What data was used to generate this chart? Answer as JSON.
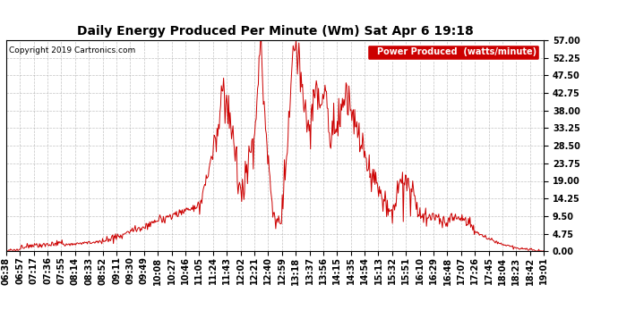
{
  "title": "Daily Energy Produced Per Minute (Wm) Sat Apr 6 19:18",
  "copyright": "Copyright 2019 Cartronics.com",
  "legend_label": "Power Produced  (watts/minute)",
  "line_color": "#cc0000",
  "legend_bg": "#cc0000",
  "legend_text_color": "#ffffff",
  "background_color": "#ffffff",
  "grid_color": "#aaaaaa",
  "ylim": [
    0,
    57.0
  ],
  "yticks": [
    0.0,
    4.75,
    9.5,
    14.25,
    19.0,
    23.75,
    28.5,
    33.25,
    38.0,
    42.75,
    47.5,
    52.25,
    57.0
  ],
  "x_labels": [
    "06:38",
    "06:57",
    "07:17",
    "07:36",
    "07:55",
    "08:14",
    "08:33",
    "08:52",
    "09:11",
    "09:30",
    "09:49",
    "10:08",
    "10:27",
    "10:46",
    "11:05",
    "11:24",
    "11:43",
    "12:02",
    "12:21",
    "12:40",
    "12:59",
    "13:18",
    "13:37",
    "13:56",
    "14:15",
    "14:35",
    "14:54",
    "15:13",
    "15:32",
    "15:51",
    "16:10",
    "16:29",
    "16:48",
    "17:07",
    "17:26",
    "17:45",
    "18:04",
    "18:23",
    "18:42",
    "19:01"
  ],
  "title_fontsize": 10,
  "tick_fontsize": 7,
  "copyright_fontsize": 6.5
}
